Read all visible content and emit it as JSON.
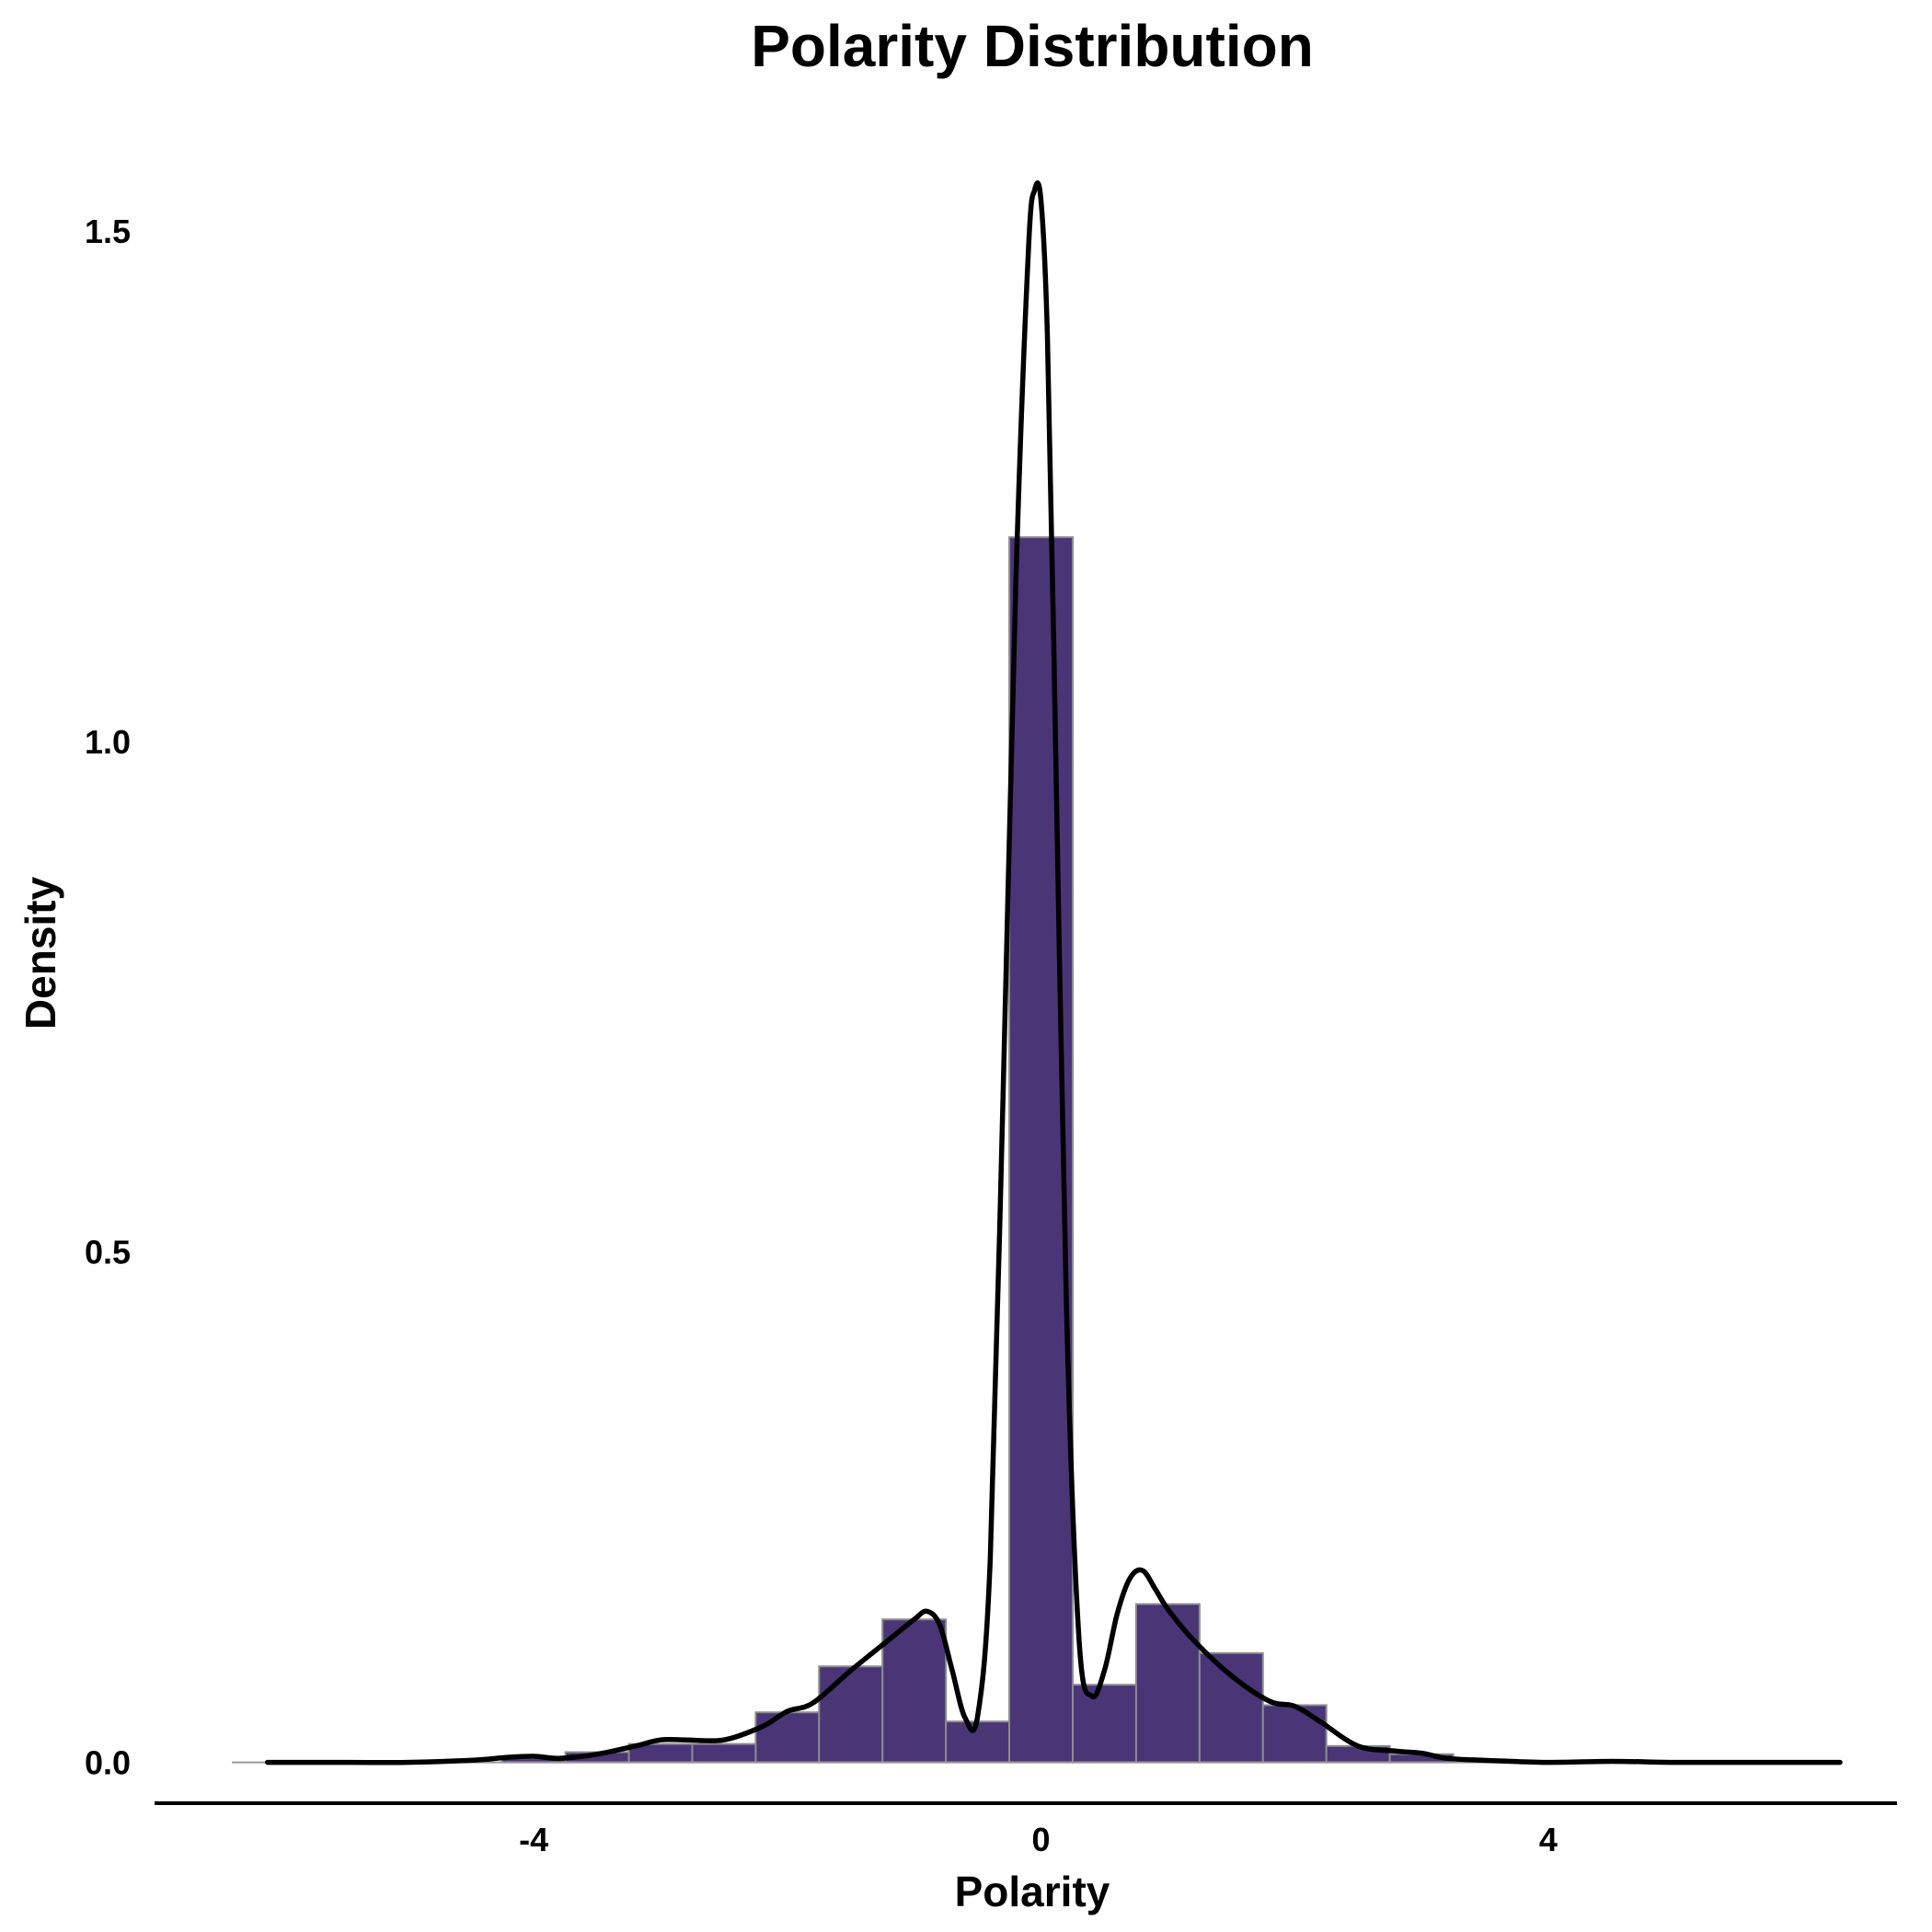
{
  "chart_data": {
    "type": "bar",
    "title": "Polarity Distribution",
    "xlabel": "Polarity",
    "ylabel": "Density",
    "xlim": [
      -6.99,
      6.75
    ],
    "ylim": [
      -0.04,
      1.6
    ],
    "xticks": [
      -4,
      0,
      4
    ],
    "xtick_labels": [
      "-4",
      "0",
      "4"
    ],
    "yticks": [
      0,
      0.5,
      1,
      1.5
    ],
    "ytick_labels": [
      "0.0",
      "0.5",
      "1.0",
      "1.5"
    ],
    "grid": false,
    "bar_color": "#4a3577",
    "bar_edge_color": "#8c8c8c",
    "curve_color": "#000000",
    "bin_width": 0.5,
    "bins": [
      {
        "x0": -4.25,
        "x1": -3.75,
        "value": 0.004
      },
      {
        "x0": -3.75,
        "x1": -3.25,
        "value": 0.01
      },
      {
        "x0": -3.25,
        "x1": -2.75,
        "value": 0.018
      },
      {
        "x0": -2.75,
        "x1": -2.25,
        "value": 0.018
      },
      {
        "x0": -2.25,
        "x1": -1.75,
        "value": 0.049
      },
      {
        "x0": -1.75,
        "x1": -1.25,
        "value": 0.094
      },
      {
        "x0": -1.25,
        "x1": -0.75,
        "value": 0.14
      },
      {
        "x0": -0.75,
        "x1": -0.25,
        "value": 0.04
      },
      {
        "x0": -0.25,
        "x1": 0.25,
        "value": 1.2
      },
      {
        "x0": 0.25,
        "x1": 0.75,
        "value": 0.076
      },
      {
        "x0": 0.75,
        "x1": 1.25,
        "value": 0.155
      },
      {
        "x0": 1.25,
        "x1": 1.75,
        "value": 0.107
      },
      {
        "x0": 1.75,
        "x1": 2.25,
        "value": 0.056
      },
      {
        "x0": 2.25,
        "x1": 2.75,
        "value": 0.016
      },
      {
        "x0": 2.75,
        "x1": 3.25,
        "value": 0.008
      }
    ],
    "density_curve": {
      "x": [
        -6.1,
        -5.5,
        -5.0,
        -4.5,
        -4.2,
        -4.0,
        -3.8,
        -3.5,
        -3.2,
        -3.0,
        -2.8,
        -2.5,
        -2.2,
        -2.0,
        -1.8,
        -1.5,
        -1.2,
        -1.0,
        -0.9,
        -0.8,
        -0.7,
        -0.6,
        -0.5,
        -0.4,
        -0.3,
        -0.2,
        -0.1,
        -0.05,
        0.0,
        0.05,
        0.1,
        0.2,
        0.3,
        0.4,
        0.5,
        0.6,
        0.7,
        0.8,
        0.9,
        1.0,
        1.2,
        1.5,
        1.8,
        2.0,
        2.2,
        2.5,
        2.8,
        3.0,
        3.2,
        3.5,
        4.0,
        4.5,
        5.0,
        5.5,
        6.0,
        6.3
      ],
      "y": [
        0.0,
        0.0,
        0.0,
        0.002,
        0.005,
        0.006,
        0.004,
        0.008,
        0.016,
        0.022,
        0.022,
        0.022,
        0.035,
        0.05,
        0.058,
        0.09,
        0.12,
        0.14,
        0.148,
        0.135,
        0.09,
        0.044,
        0.045,
        0.2,
        0.65,
        1.15,
        1.48,
        1.54,
        1.53,
        1.4,
        1.1,
        0.45,
        0.12,
        0.065,
        0.09,
        0.145,
        0.18,
        0.188,
        0.17,
        0.15,
        0.12,
        0.085,
        0.06,
        0.055,
        0.04,
        0.016,
        0.011,
        0.009,
        0.004,
        0.002,
        0.0,
        0.001,
        0.0,
        0.0,
        0.0,
        0.0
      ]
    }
  }
}
